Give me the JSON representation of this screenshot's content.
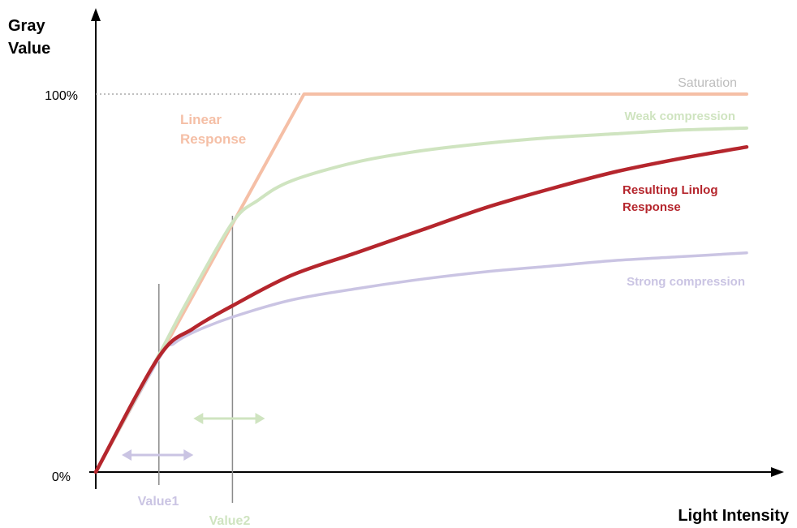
{
  "chart_data": {
    "type": "line",
    "yaxis": {
      "title_line1": "Gray",
      "title_line2": "Value"
    },
    "xaxis": {
      "title": "Light Intensity"
    },
    "ticks": {
      "y_top": "100%",
      "y_bottom": "0%"
    },
    "xlim": [
      0,
      100
    ],
    "ylim": [
      0,
      100
    ],
    "saturation_label": "Saturation",
    "series": [
      {
        "key": "linear",
        "label_line1": "Linear",
        "label_line2": "Response",
        "color": "#f5bfa6",
        "points": [
          [
            0,
            0
          ],
          [
            32,
            100
          ],
          [
            100,
            100
          ]
        ]
      },
      {
        "key": "weak",
        "label": "Weak compression",
        "color": "#cfe4c0",
        "points": [
          [
            0,
            0
          ],
          [
            9.7,
            31
          ],
          [
            14,
            45
          ],
          [
            21,
            66
          ],
          [
            25,
            72
          ],
          [
            30,
            77
          ],
          [
            40,
            82
          ],
          [
            50,
            85
          ],
          [
            60,
            87
          ],
          [
            70,
            88.5
          ],
          [
            80,
            89.5
          ],
          [
            90,
            90.5
          ],
          [
            100,
            91
          ]
        ]
      },
      {
        "key": "resulting",
        "label_line1": "Resulting Linlog",
        "label_line2": "Response",
        "color": "#b5262d",
        "points": [
          [
            0,
            0
          ],
          [
            9.7,
            30.5
          ],
          [
            15,
            38
          ],
          [
            21,
            44
          ],
          [
            30,
            52
          ],
          [
            40,
            58
          ],
          [
            50,
            64
          ],
          [
            60,
            70
          ],
          [
            70,
            75
          ],
          [
            80,
            79.5
          ],
          [
            90,
            83
          ],
          [
            100,
            86
          ]
        ]
      },
      {
        "key": "strong",
        "label": "Strong compression",
        "color": "#cac4e3",
        "points": [
          [
            0,
            0
          ],
          [
            9.7,
            30
          ],
          [
            12,
            34
          ],
          [
            15,
            37
          ],
          [
            21,
            41
          ],
          [
            30,
            45.5
          ],
          [
            40,
            48.5
          ],
          [
            50,
            51
          ],
          [
            60,
            53
          ],
          [
            70,
            54.5
          ],
          [
            80,
            56
          ],
          [
            90,
            57
          ],
          [
            100,
            58
          ]
        ]
      }
    ],
    "markers": [
      {
        "key": "value1",
        "label": "Value1",
        "x": 9.7,
        "color": "#cac4e3",
        "arrow": [
          4,
          15
        ]
      },
      {
        "key": "value2",
        "label": "Value2",
        "x": 21,
        "color": "#cfe4c0",
        "arrow": [
          15,
          26
        ]
      }
    ]
  },
  "colors": {
    "axis": "#000000",
    "marker_line": "#8a8a8a",
    "saturation_dots": "#aaaaaa",
    "saturation_text": "#bdbdbd"
  }
}
